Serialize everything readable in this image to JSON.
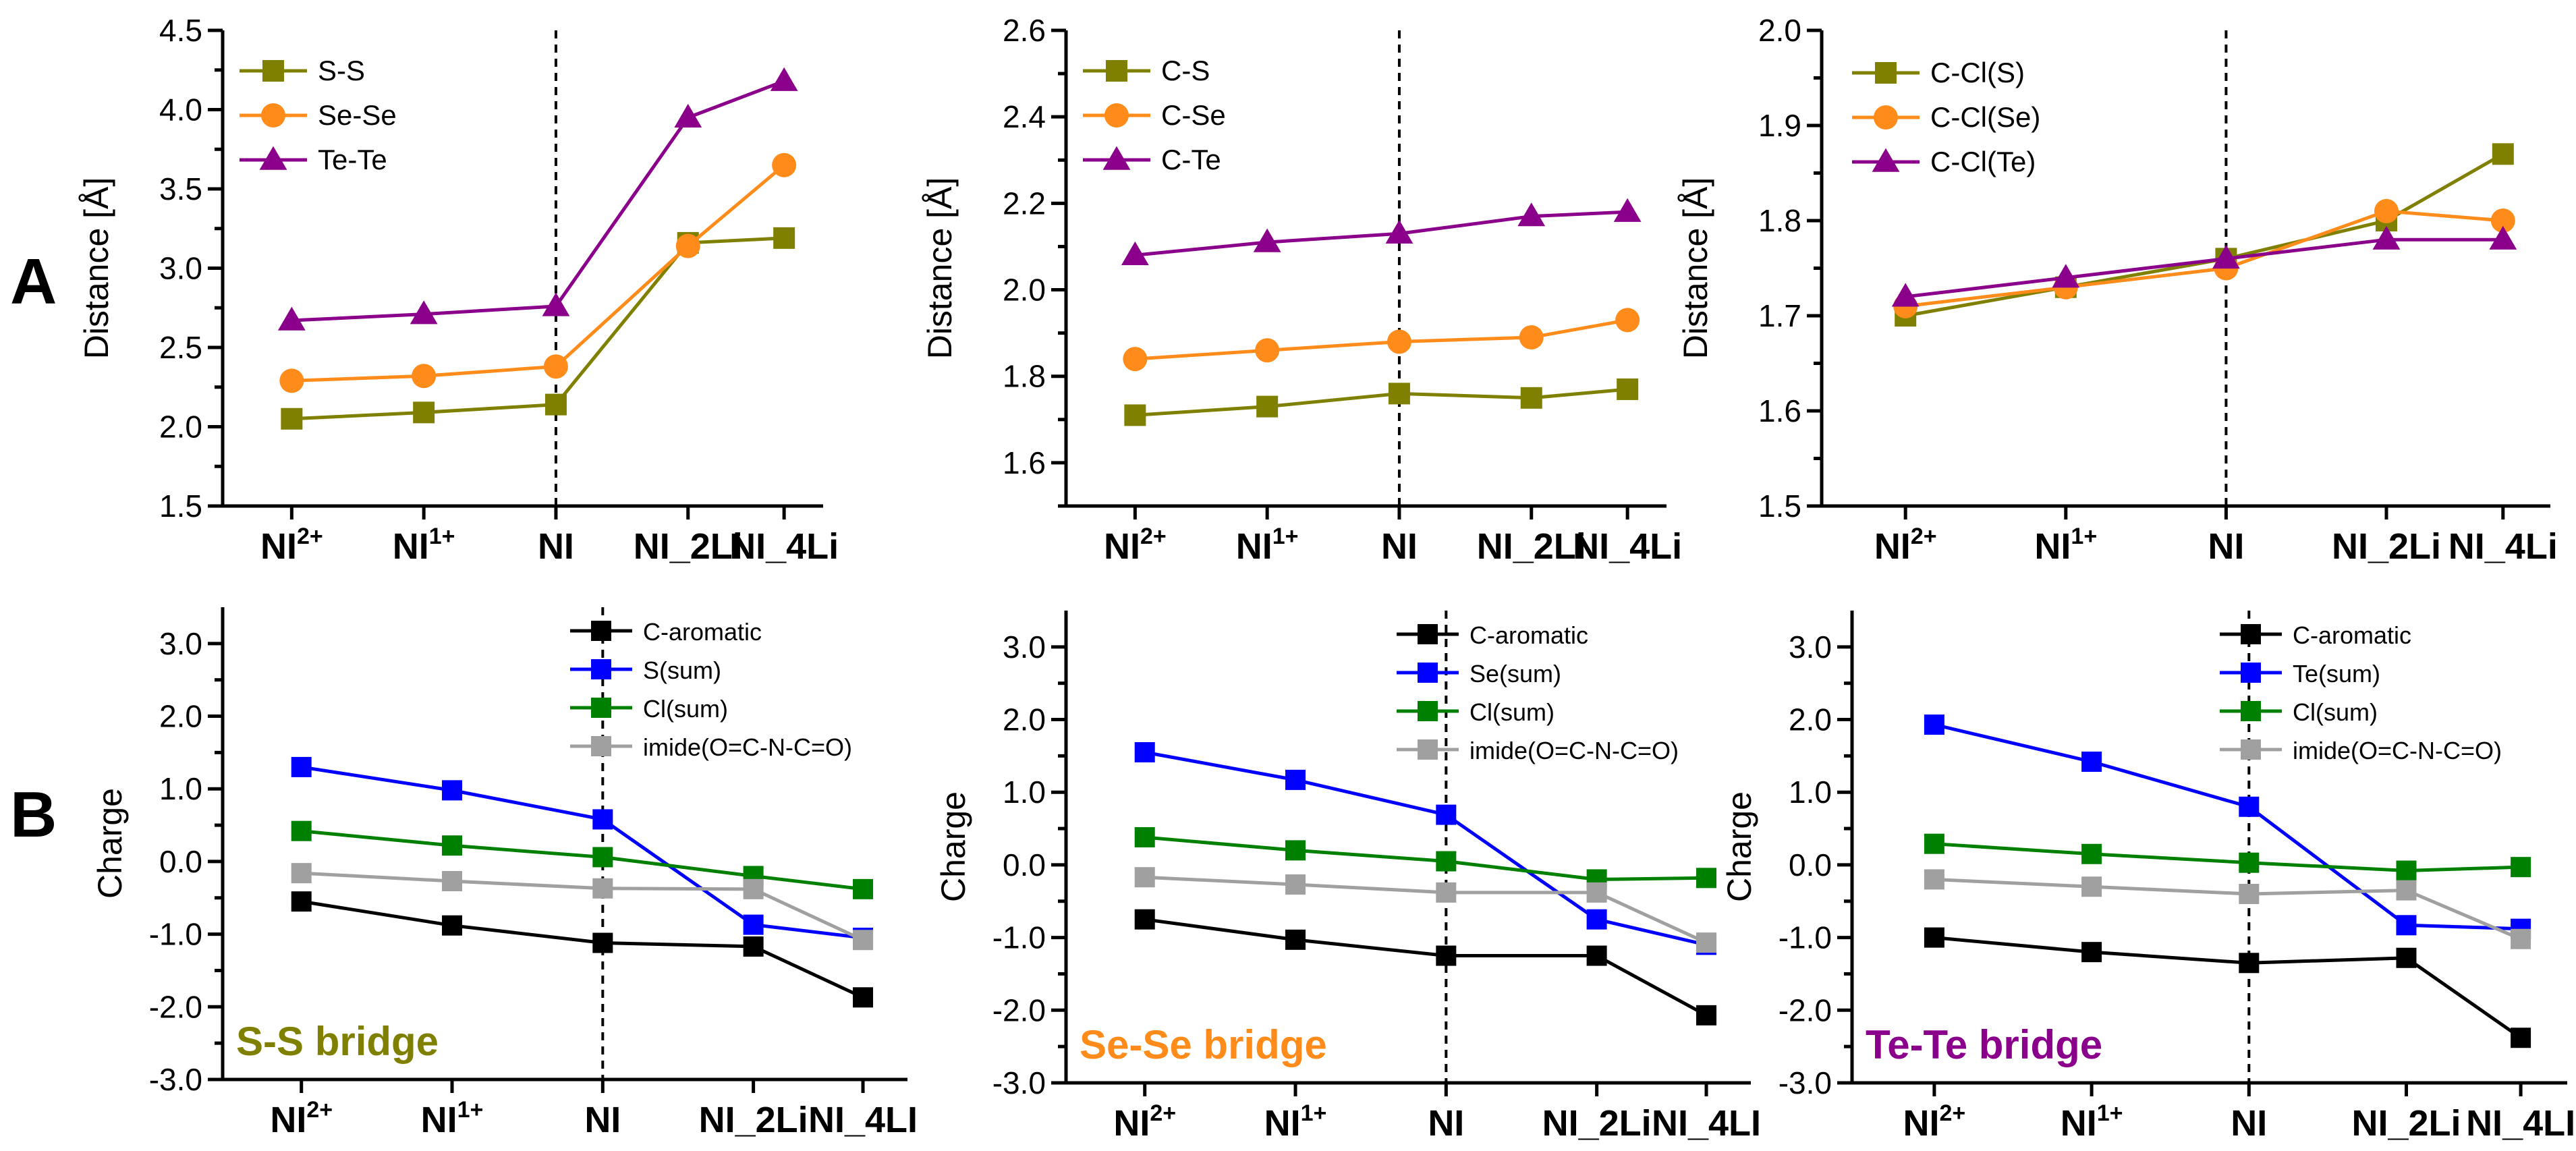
{
  "panel_labels": [
    "A",
    "B"
  ],
  "categories": [
    {
      "base": "NI",
      "sup": "2+"
    },
    {
      "base": "NI",
      "sup": "1+"
    },
    {
      "base": "NI",
      "sup": ""
    },
    {
      "base": "NI_2Li",
      "sup": ""
    },
    {
      "base": "NI_4Li",
      "sup": ""
    }
  ],
  "categories_b": [
    {
      "base": "NI",
      "sup": "2+"
    },
    {
      "base": "NI",
      "sup": "1+"
    },
    {
      "base": "NI",
      "sup": ""
    },
    {
      "base": "NI_2Li",
      "sup": ""
    },
    {
      "base": "NI_4LI",
      "sup": ""
    }
  ],
  "colors": {
    "olive": "#808000",
    "orange": "#ff8c1a",
    "purple": "#8b008b",
    "black": "#000000",
    "blue": "#0000ff",
    "green": "#008000",
    "gray": "#a0a0a0"
  },
  "chart_data": [
    {
      "type": "line",
      "ylabel": "Distance [Å]",
      "ylim": [
        1.5,
        4.5
      ],
      "yticks": [
        "1.5",
        "2.0",
        "2.5",
        "3.0",
        "3.5",
        "4.0",
        "4.5"
      ],
      "divider_after": "NI",
      "legend_position": "top-left",
      "series": [
        {
          "name": "S-S",
          "marker": "square",
          "color": "#808000",
          "values": [
            2.05,
            2.09,
            2.14,
            3.16,
            3.19
          ]
        },
        {
          "name": "Se-Se",
          "marker": "circle",
          "color": "#ff8c1a",
          "values": [
            2.29,
            2.32,
            2.38,
            3.14,
            3.65
          ]
        },
        {
          "name": "Te-Te",
          "marker": "triangle",
          "color": "#8b008b",
          "values": [
            2.67,
            2.71,
            2.76,
            3.95,
            4.18
          ]
        }
      ]
    },
    {
      "type": "line",
      "ylabel": "Distance [Å]",
      "ylim": [
        1.5,
        2.6
      ],
      "yticks": [
        "1.6",
        "1.8",
        "2.0",
        "2.2",
        "2.4",
        "2.6"
      ],
      "divider_after": "NI",
      "legend_position": "top-left",
      "series": [
        {
          "name": "C-S",
          "marker": "square",
          "color": "#808000",
          "values": [
            1.71,
            1.73,
            1.76,
            1.75,
            1.77
          ]
        },
        {
          "name": "C-Se",
          "marker": "circle",
          "color": "#ff8c1a",
          "values": [
            1.84,
            1.86,
            1.88,
            1.89,
            1.93
          ]
        },
        {
          "name": "C-Te",
          "marker": "triangle",
          "color": "#8b008b",
          "values": [
            2.08,
            2.11,
            2.13,
            2.17,
            2.18
          ]
        }
      ]
    },
    {
      "type": "line",
      "ylabel": "Distance [Å]",
      "ylim": [
        1.5,
        2.0
      ],
      "yticks": [
        "1.5",
        "1.6",
        "1.7",
        "1.8",
        "1.9",
        "2.0"
      ],
      "divider_after": "NI",
      "legend_position": "top-left",
      "series": [
        {
          "name": "C-Cl(S)",
          "marker": "square",
          "color": "#808000",
          "values": [
            1.7,
            1.73,
            1.76,
            1.8,
            1.87
          ]
        },
        {
          "name": "C-Cl(Se)",
          "marker": "circle",
          "color": "#ff8c1a",
          "values": [
            1.71,
            1.73,
            1.75,
            1.81,
            1.8
          ]
        },
        {
          "name": "C-Cl(Te)",
          "marker": "triangle",
          "color": "#8b008b",
          "values": [
            1.72,
            1.74,
            1.76,
            1.78,
            1.78
          ]
        }
      ]
    },
    {
      "type": "line",
      "ylabel": "Charge",
      "ylim": [
        -3.0,
        3.5
      ],
      "yticks": [
        "-3.0",
        "-2.0",
        "-1.0",
        "0.0",
        "1.0",
        "2.0",
        "3.0"
      ],
      "divider_after": "NI",
      "legend_position": "top-right",
      "annotation": {
        "text": "S-S bridge",
        "color": "#808000"
      },
      "series": [
        {
          "name": "C-aromatic",
          "marker": "square",
          "color": "#000000",
          "values": [
            -0.55,
            -0.88,
            -1.12,
            -1.17,
            -1.87
          ]
        },
        {
          "name": "S(sum)",
          "marker": "square",
          "color": "#0000ff",
          "values": [
            1.3,
            0.98,
            0.58,
            -0.87,
            -1.05
          ]
        },
        {
          "name": "Cl(sum)",
          "marker": "square",
          "color": "#008000",
          "values": [
            0.42,
            0.22,
            0.06,
            -0.2,
            -0.38
          ]
        },
        {
          "name": "imide(O=C-N-C=O)",
          "marker": "square",
          "color": "#a0a0a0",
          "values": [
            -0.16,
            -0.27,
            -0.37,
            -0.38,
            -1.08
          ]
        }
      ]
    },
    {
      "type": "line",
      "ylabel": "Charge",
      "ylim": [
        -3.0,
        3.5
      ],
      "yticks": [
        "-3.0",
        "-2.0",
        "-1.0",
        "0.0",
        "1.0",
        "2.0",
        "3.0"
      ],
      "divider_after": "NI",
      "legend_position": "top-right",
      "annotation": {
        "text": "Se-Se bridge",
        "color": "#ff8c1a"
      },
      "series": [
        {
          "name": "C-aromatic",
          "marker": "square",
          "color": "#000000",
          "values": [
            -0.75,
            -1.03,
            -1.25,
            -1.25,
            -2.07
          ]
        },
        {
          "name": "Se(sum)",
          "marker": "square",
          "color": "#0000ff",
          "values": [
            1.55,
            1.17,
            0.69,
            -0.75,
            -1.1
          ]
        },
        {
          "name": "Cl(sum)",
          "marker": "square",
          "color": "#008000",
          "values": [
            0.38,
            0.2,
            0.05,
            -0.2,
            -0.18
          ]
        },
        {
          "name": "imide(O=C-N-C=O)",
          "marker": "square",
          "color": "#a0a0a0",
          "values": [
            -0.17,
            -0.27,
            -0.38,
            -0.38,
            -1.07
          ]
        }
      ]
    },
    {
      "type": "line",
      "ylabel": "Charge",
      "ylim": [
        -3.0,
        3.5
      ],
      "yticks": [
        "-3.0",
        "-2.0",
        "-1.0",
        "0.0",
        "1.0",
        "2.0",
        "3.0"
      ],
      "divider_after": "NI",
      "legend_position": "top-right",
      "annotation": {
        "text": "Te-Te bridge",
        "color": "#8b008b"
      },
      "series": [
        {
          "name": "C-aromatic",
          "marker": "square",
          "color": "#000000",
          "values": [
            -1.0,
            -1.2,
            -1.35,
            -1.28,
            -2.38
          ]
        },
        {
          "name": "Te(sum)",
          "marker": "square",
          "color": "#0000ff",
          "values": [
            1.93,
            1.42,
            0.8,
            -0.83,
            -0.88
          ]
        },
        {
          "name": "Cl(sum)",
          "marker": "square",
          "color": "#008000",
          "values": [
            0.29,
            0.15,
            0.03,
            -0.08,
            -0.03
          ]
        },
        {
          "name": "imide(O=C-N-C=O)",
          "marker": "square",
          "color": "#a0a0a0",
          "values": [
            -0.2,
            -0.3,
            -0.4,
            -0.35,
            -1.02
          ]
        }
      ]
    }
  ]
}
